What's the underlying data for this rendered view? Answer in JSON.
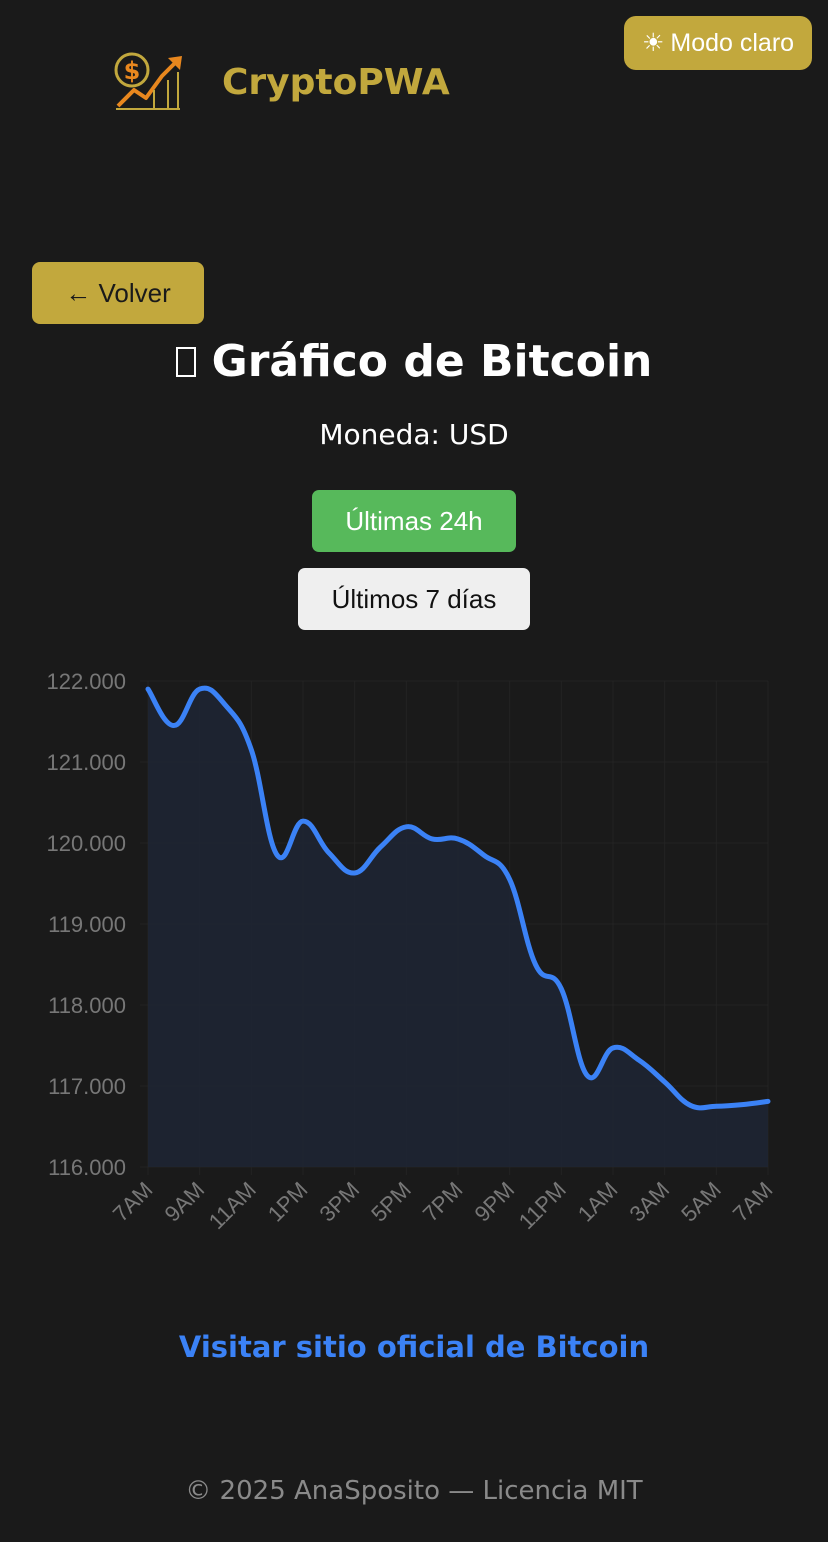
{
  "header": {
    "theme_icon": "sun-icon",
    "theme_icon_glyph": "☀",
    "theme_toggle_label": "Modo claro",
    "logo_icon": "coin-growth-chart-icon",
    "brand_name": "CryptoPWA"
  },
  "nav": {
    "back_label": "← Volver"
  },
  "page": {
    "title_icon": "chart-icon",
    "title": "Gráfico de Bitcoin",
    "currency_label": "Moneda: USD"
  },
  "range_buttons": {
    "last_24h": "Últimas 24h",
    "last_7d": "Últimos 7 días"
  },
  "chart_data": {
    "type": "area",
    "x": [
      "7AM",
      "8AM",
      "9AM",
      "10AM",
      "11AM",
      "12PM",
      "1PM",
      "2PM",
      "3PM",
      "4PM",
      "5PM",
      "6PM",
      "7PM",
      "8PM",
      "9PM",
      "10PM",
      "11PM",
      "12AM",
      "1AM",
      "2AM",
      "3AM",
      "4AM",
      "5AM",
      "6AM",
      "7AM"
    ],
    "x_tick_labels": [
      "7AM",
      "9AM",
      "11AM",
      "1PM",
      "3PM",
      "5PM",
      "7PM",
      "9PM",
      "11PM",
      "1AM",
      "3AM",
      "5AM",
      "7AM"
    ],
    "series": [
      {
        "values": [
          121900,
          121450,
          121900,
          121700,
          121150,
          119850,
          120270,
          119880,
          119630,
          119950,
          120200,
          120050,
          120050,
          119850,
          119550,
          118500,
          118200,
          117130,
          117470,
          117320,
          117050,
          116760,
          116750,
          116770,
          116810
        ]
      }
    ],
    "ylim": [
      116000,
      122000
    ],
    "y_ticks": [
      116000,
      117000,
      118000,
      119000,
      120000,
      121000,
      122000
    ],
    "y_tick_labels": [
      "116.000",
      "117.000",
      "118.000",
      "119.000",
      "120.000",
      "121.000",
      "122.000"
    ],
    "grid": true,
    "colors": {
      "line": "#3b82f6",
      "fill": "#1e2533",
      "grid": "#232323",
      "tick": "#777777"
    }
  },
  "links": {
    "official_site": "Visitar sitio oficial de Bitcoin"
  },
  "footer": {
    "copyright": "© 2025 AnaSposito — Licencia MIT"
  }
}
